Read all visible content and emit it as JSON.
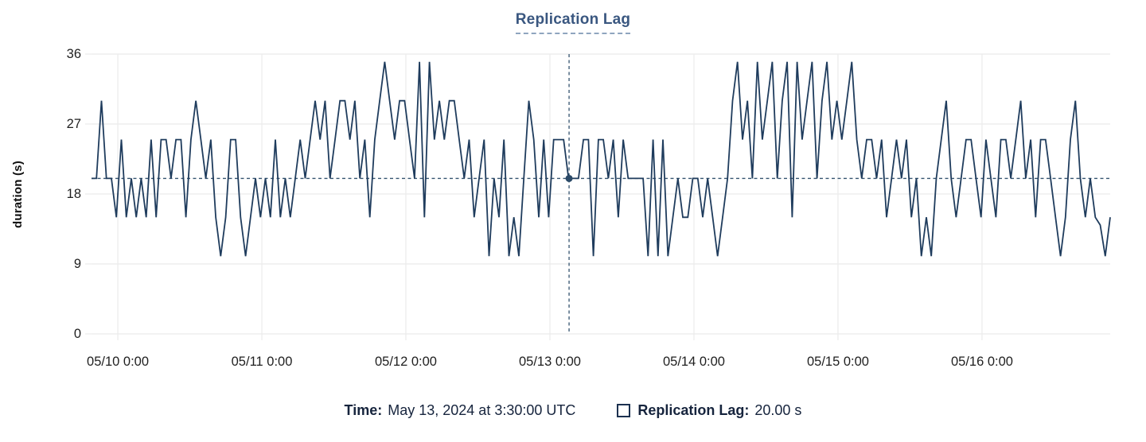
{
  "title": "Replication Lag",
  "footer": {
    "time_label": "Time:",
    "time_value": "May 13, 2024 at 3:30:00 UTC",
    "series_label": "Replication Lag:",
    "series_value": "20.00 s"
  },
  "chart_data": {
    "type": "line",
    "title": "Replication Lag",
    "xlabel": "",
    "ylabel": "duration (s)",
    "ylim": [
      0,
      36
    ],
    "yticks": [
      0,
      9,
      18,
      27,
      36
    ],
    "grid": true,
    "legend_position": "bottom",
    "unit": "s",
    "xticks": [
      {
        "label": "05/10 0:00",
        "f": 0.0258
      },
      {
        "label": "05/11 0:00",
        "f": 0.1672
      },
      {
        "label": "05/12 0:00",
        "f": 0.3086
      },
      {
        "label": "05/13 0:00",
        "f": 0.45
      },
      {
        "label": "05/14 0:00",
        "f": 0.5914
      },
      {
        "label": "05/15 0:00",
        "f": 0.7328
      },
      {
        "label": "05/16 0:00",
        "f": 0.8742
      }
    ],
    "crosshair": {
      "x_f": 0.4688,
      "y_value": 20,
      "time": "May 13, 2024 at 3:30:00 UTC",
      "value_label": "20.00 s"
    },
    "colors": {
      "line": "#1f3c5d",
      "crosshair": "#34536f",
      "dot": "#2b4a68",
      "grid": "#ebebeb",
      "title_text": "#3a5780",
      "legend_text": "#16243d",
      "tick_text": "#1f1f1f",
      "background": "#ffffff"
    },
    "values": [
      20,
      20,
      30,
      20,
      20,
      15,
      25,
      15,
      20,
      15,
      20,
      15,
      25,
      15,
      25,
      25,
      20,
      25,
      25,
      15,
      25,
      30,
      25,
      20,
      25,
      15,
      10,
      15,
      25,
      25,
      15,
      10,
      15,
      20,
      15,
      20,
      15,
      25,
      15,
      20,
      15,
      20,
      25,
      20,
      25,
      30,
      25,
      30,
      20,
      25,
      30,
      30,
      25,
      30,
      20,
      25,
      15,
      25,
      30,
      35,
      30,
      25,
      30,
      30,
      25,
      20,
      35,
      15,
      35,
      25,
      30,
      25,
      30,
      30,
      25,
      20,
      25,
      15,
      20,
      25,
      10,
      20,
      15,
      25,
      10,
      15,
      10,
      20,
      30,
      25,
      15,
      25,
      15,
      25,
      25,
      25,
      20,
      20,
      20,
      25,
      25,
      10,
      25,
      25,
      20,
      25,
      15,
      25,
      20,
      20,
      20,
      20,
      10,
      25,
      10,
      25,
      10,
      15,
      20,
      15,
      15,
      20,
      20,
      15,
      20,
      15,
      10,
      15,
      20,
      30,
      35,
      25,
      30,
      20,
      35,
      25,
      30,
      35,
      20,
      30,
      35,
      15,
      35,
      25,
      30,
      35,
      20,
      30,
      35,
      25,
      30,
      25,
      30,
      35,
      25,
      20,
      25,
      25,
      20,
      25,
      15,
      20,
      25,
      20,
      25,
      15,
      20,
      10,
      15,
      10,
      20,
      25,
      30,
      20,
      15,
      20,
      25,
      25,
      20,
      15,
      25,
      20,
      15,
      25,
      25,
      20,
      25,
      30,
      20,
      25,
      15,
      25,
      25,
      20,
      15,
      10,
      15,
      25,
      30,
      20,
      15,
      20,
      15,
      14,
      10,
      15
    ]
  }
}
